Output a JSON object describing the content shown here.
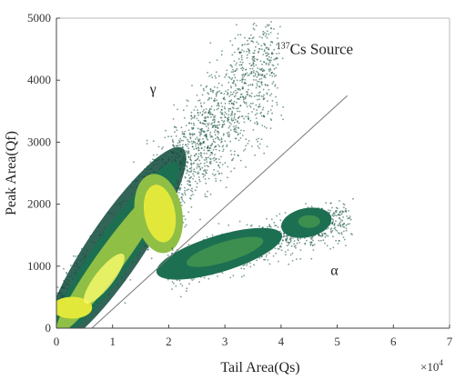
{
  "chart_data": {
    "type": "heatmap",
    "title": "",
    "xlabel": "Tail Area(Qs)",
    "ylabel": "Peak Area(Qf)",
    "x_multiplier_label": "×10^4",
    "xlim": [
      0,
      7
    ],
    "ylim": [
      0,
      5000
    ],
    "x_ticks": [
      0,
      1,
      2,
      3,
      4,
      5,
      6,
      7
    ],
    "y_ticks": [
      0,
      1000,
      2000,
      3000,
      4000,
      5000
    ],
    "grid": false,
    "legend": "none",
    "colormap": [
      "#0e4a3a",
      "#1d6f52",
      "#3d8f4f",
      "#8fbf45",
      "#e2e83a",
      "#f6f86a"
    ],
    "annotations": [
      {
        "text_sup": "137",
        "text": "Cs Source",
        "x": 4.6,
        "y": 4420
      },
      {
        "text": "γ",
        "x": 1.72,
        "y": 3780
      },
      {
        "text": "α",
        "x": 4.95,
        "y": 860
      }
    ],
    "discrimination_line": {
      "x": [
        0.63,
        5.18
      ],
      "y": [
        0,
        3750
      ]
    },
    "series": [
      {
        "name": "γ",
        "region": "gamma band",
        "x_range": [
          0.0,
          4.0
        ],
        "y_range": [
          150,
          4600
        ],
        "core": {
          "x": 1.85,
          "y": 1850
        }
      },
      {
        "name": "α",
        "region": "alpha cluster",
        "x_range": [
          1.8,
          5.3
        ],
        "y_range": [
          800,
          2000
        ],
        "core": {
          "x": 3.2,
          "y": 1200
        }
      },
      {
        "region": "alpha high cluster",
        "x_range": [
          3.8,
          5.2
        ],
        "y_range": [
          1400,
          2000
        ],
        "core": {
          "x": 4.5,
          "y": 1700
        }
      }
    ]
  }
}
